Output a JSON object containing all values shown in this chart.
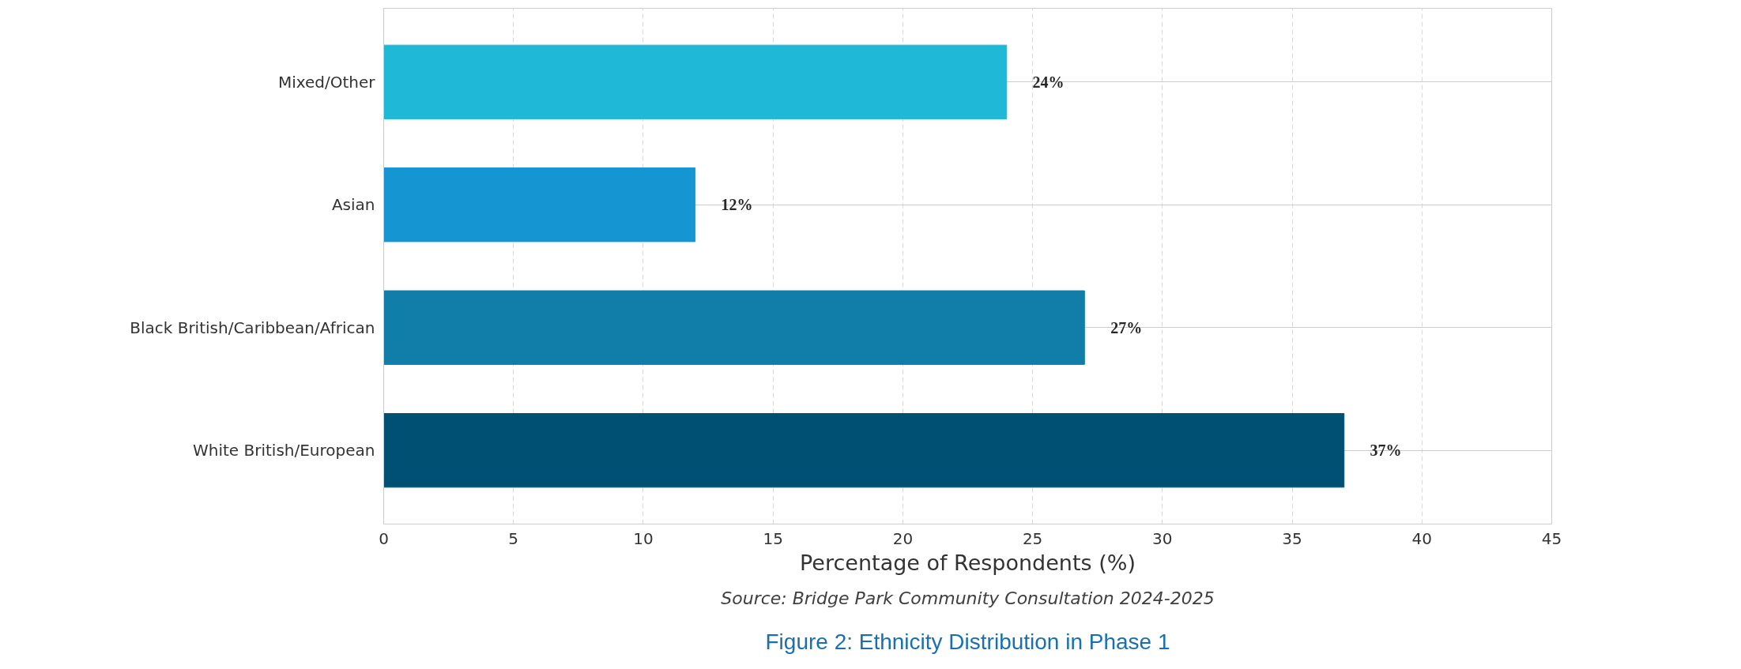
{
  "chart_data": {
    "type": "bar",
    "orientation": "horizontal",
    "categories": [
      "Mixed/Other",
      "Asian",
      "Black British/Caribbean/African",
      "White British/European"
    ],
    "values": [
      24,
      12,
      27,
      37
    ],
    "colors": [
      "#1fb8d6",
      "#1596d2",
      "#117ea9",
      "#005073"
    ],
    "value_labels": [
      "24%",
      "12%",
      "27%",
      "37%"
    ],
    "xlabel": "Percentage of Respondents (%)",
    "xlim": [
      0,
      45
    ],
    "xticks": [
      0,
      5,
      10,
      15,
      20,
      25,
      30,
      35,
      40,
      45
    ],
    "grid": true,
    "annotations": [
      "Source: Bridge Park Community Consultation 2024-2025",
      "Figure 2: Ethnicity Distribution in Phase 1"
    ]
  }
}
